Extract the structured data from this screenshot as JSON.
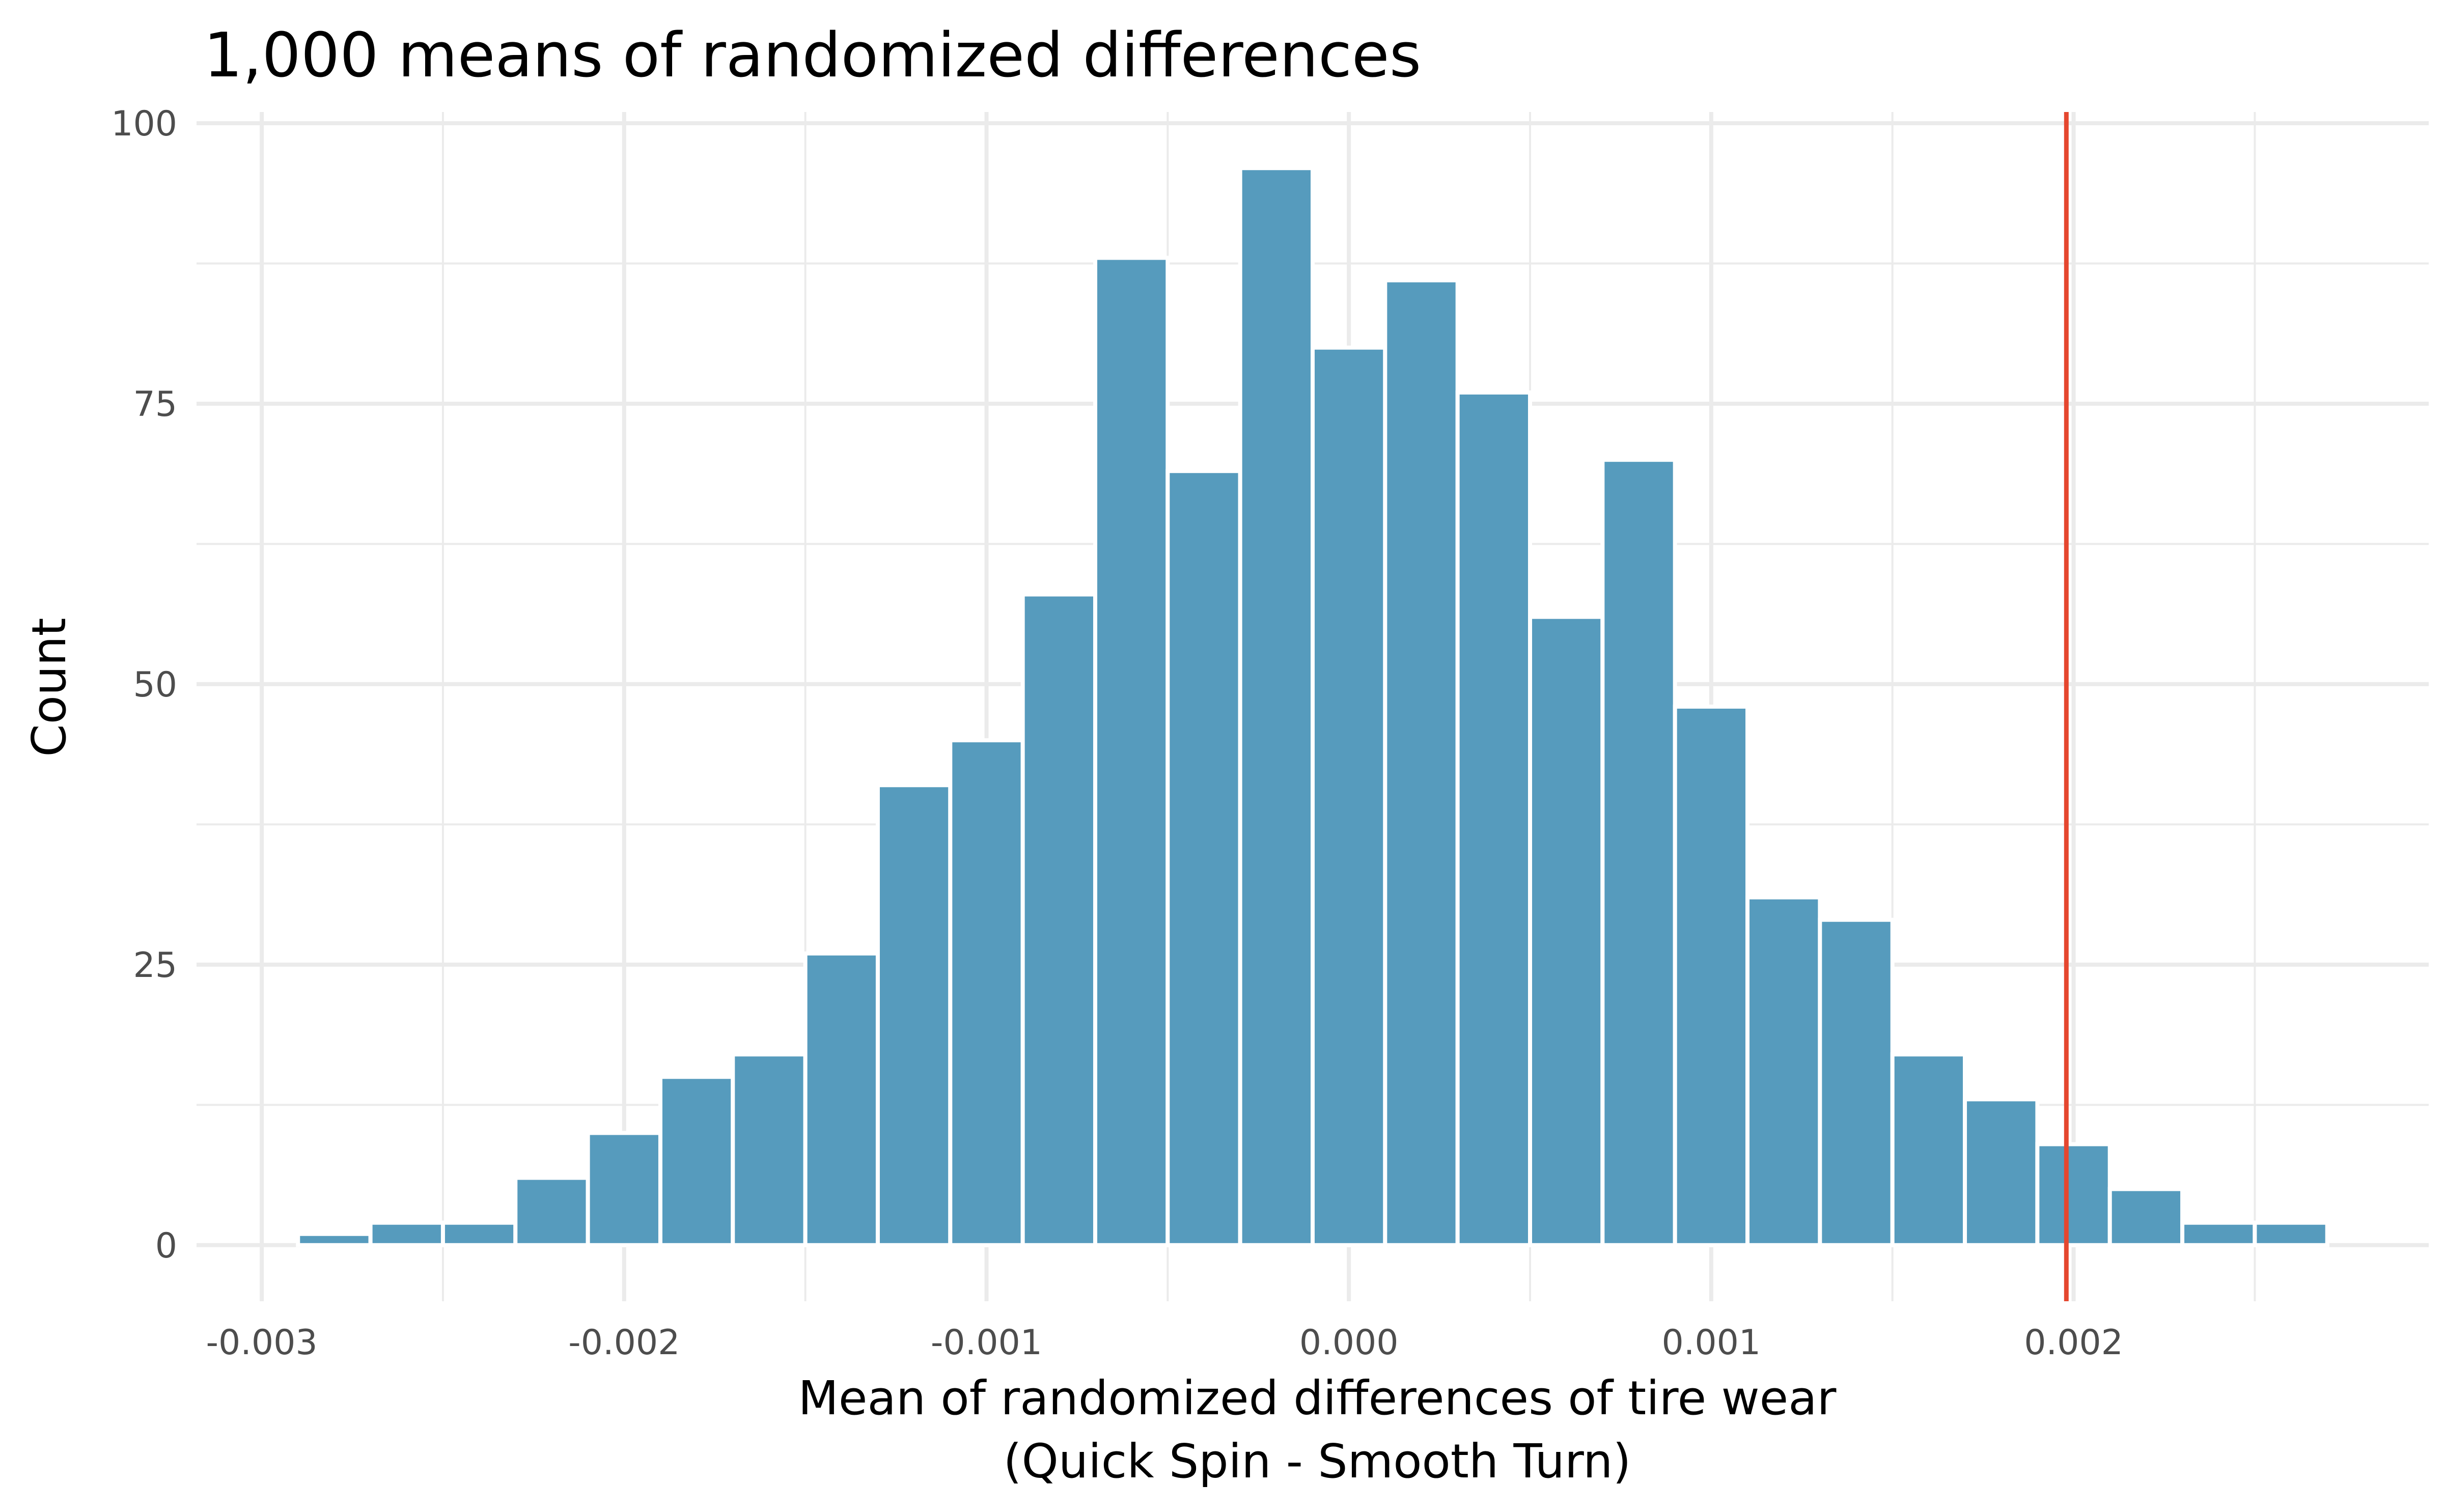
{
  "chart_data": {
    "type": "bar",
    "title": "1,000 means of randomized differences",
    "xlabel": "Mean of randomized differences of tire wear",
    "xlabel_line2": "(Quick Spin - Smooth Turn)",
    "ylabel": "Count",
    "xlim": [
      -0.00318,
      0.00298
    ],
    "ylim": [
      -5,
      101
    ],
    "x_ticks": [
      -0.003,
      -0.002,
      -0.001,
      0.0,
      0.001,
      0.002
    ],
    "x_tick_labels": [
      "-0.003",
      "-0.002",
      "-0.001",
      "0.000",
      "0.001",
      "0.002"
    ],
    "x_minor_ticks": [
      -0.0025,
      -0.0015,
      -0.0005,
      0.0005,
      0.0015,
      0.0025
    ],
    "y_ticks": [
      0,
      25,
      50,
      75,
      100
    ],
    "y_tick_labels": [
      "0",
      "25",
      "50",
      "75",
      "100"
    ],
    "y_minor_ticks": [
      12.5,
      37.5,
      62.5,
      87.5
    ],
    "grid": true,
    "bin_width": 0.0002,
    "bins_center": [
      -0.0028,
      -0.0026,
      -0.0024,
      -0.0022,
      -0.002,
      -0.0018,
      -0.0016,
      -0.0014,
      -0.0012,
      -0.001,
      -0.0008,
      -0.0006,
      -0.0004,
      -0.0002,
      0.0,
      0.0002,
      0.0004,
      0.0006,
      0.0008,
      0.001,
      0.0012,
      0.0014,
      0.0016,
      0.0018,
      0.002,
      0.0022,
      0.0024,
      0.0026
    ],
    "counts": [
      1,
      2,
      2,
      6,
      10,
      15,
      17,
      26,
      41,
      45,
      58,
      88,
      69,
      96,
      80,
      86,
      76,
      56,
      70,
      48,
      31,
      29,
      17,
      13,
      9,
      5,
      2,
      2
    ],
    "bar_color": "#569bbd",
    "observed_line_x": 0.00198,
    "observed_line_color": "#e5472f"
  }
}
